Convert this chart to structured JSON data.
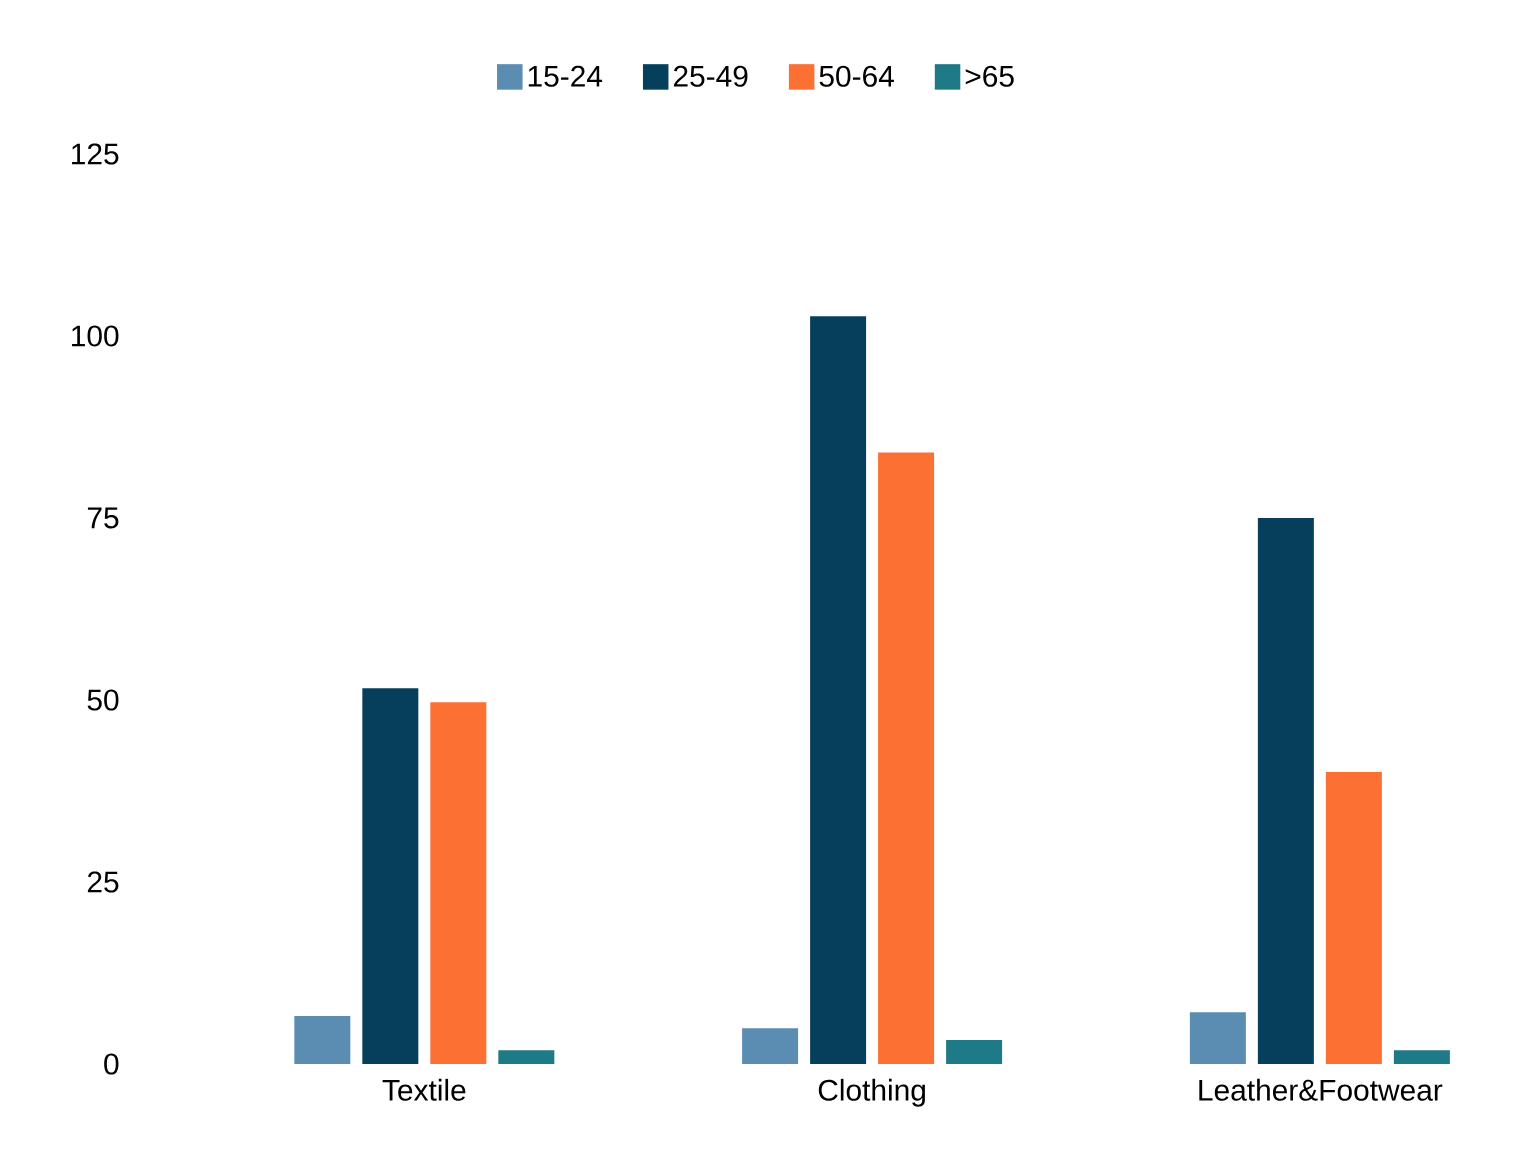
{
  "chart_data": {
    "type": "bar",
    "categories": [
      "Textile",
      "Clothing",
      "Leather&Footwear"
    ],
    "series": [
      {
        "name": "15-24",
        "color": "#5b8db3",
        "values": [
          6.6,
          4.9,
          7.1
        ]
      },
      {
        "name": "25-49",
        "color": "#063f5c",
        "values": [
          51.6,
          102.7,
          75
        ]
      },
      {
        "name": "50-64",
        "color": "#fd7033",
        "values": [
          49.7,
          84,
          40.1
        ]
      },
      {
        "name": ">65",
        "color": "#1f7a87",
        "values": [
          1.9,
          3.3,
          1.9
        ]
      }
    ],
    "ylim": [
      0,
      125
    ],
    "yticks": [
      0,
      25,
      50,
      75,
      100,
      125
    ],
    "grid": false,
    "legend": "top"
  }
}
